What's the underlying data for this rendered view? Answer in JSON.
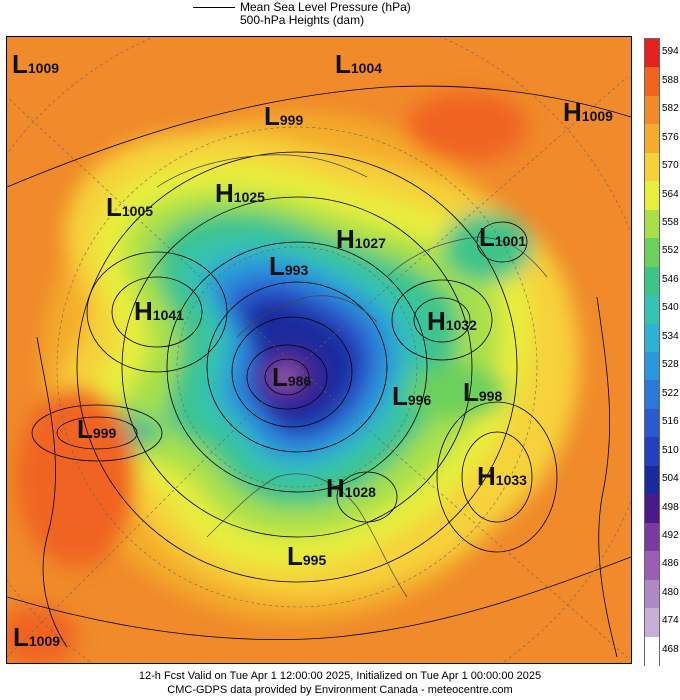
{
  "header": {
    "line1": "Mean Sea Level Pressure (hPa)",
    "line2": "500-hPa Heights (dam)"
  },
  "footer": {
    "line1": "12-h Fcst Valid on Tue Apr  1 12:00:00 2025, Initialized on Tue Apr  1 00:00:00 2025",
    "line2": "CMC-GDPS data provided by Environment Canada - meteocentre.com"
  },
  "colorbar": {
    "levels": [
      "594",
      "588",
      "582",
      "576",
      "570",
      "564",
      "558",
      "552",
      "546",
      "540",
      "534",
      "528",
      "522",
      "516",
      "510",
      "504",
      "498",
      "492",
      "486",
      "480",
      "474",
      "468"
    ],
    "colors": [
      "#e8201f",
      "#f06420",
      "#f08a2a",
      "#f4ac2c",
      "#f6d23a",
      "#e8ee3c",
      "#a8e04a",
      "#6cd05c",
      "#3cc48a",
      "#34c2b4",
      "#2eb2d4",
      "#2a96dc",
      "#2a78d8",
      "#2a5ad0",
      "#2440c0",
      "#1a2a9e",
      "#4a1a8a",
      "#7a3aa0",
      "#9a5eb4",
      "#b088c4",
      "#c8aed6",
      "#ffffff"
    ]
  },
  "pressure_centers": [
    {
      "type": "L",
      "value": "1009"
    },
    {
      "type": "L",
      "value": "1004"
    },
    {
      "type": "L",
      "value": "999"
    },
    {
      "type": "H",
      "value": "1009"
    },
    {
      "type": "L",
      "value": "1005"
    },
    {
      "type": "H",
      "value": "1025"
    },
    {
      "type": "H",
      "value": "1027"
    },
    {
      "type": "L",
      "value": "1001"
    },
    {
      "type": "L",
      "value": "993"
    },
    {
      "type": "H",
      "value": "1041"
    },
    {
      "type": "H",
      "value": "1032"
    },
    {
      "type": "L",
      "value": "986"
    },
    {
      "type": "L",
      "value": "996"
    },
    {
      "type": "L",
      "value": "998"
    },
    {
      "type": "L",
      "value": "999"
    },
    {
      "type": "H",
      "value": "1028"
    },
    {
      "type": "H",
      "value": "1033"
    },
    {
      "type": "L",
      "value": "995"
    },
    {
      "type": "L",
      "value": "1009"
    }
  ]
}
